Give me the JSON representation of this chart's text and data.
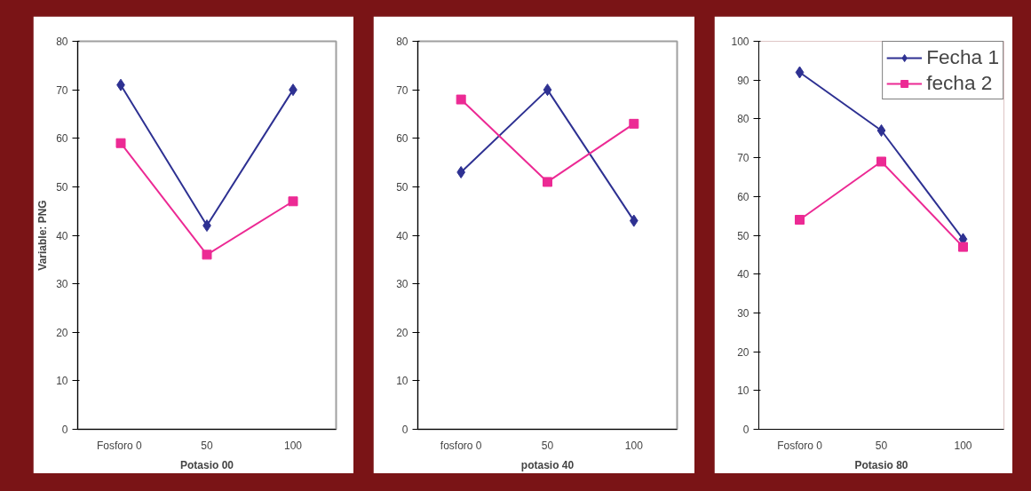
{
  "chart_data": [
    {
      "type": "line",
      "categories": [
        "Fosforo  0",
        "50",
        "100"
      ],
      "xlabel": "Potasio 00",
      "ylabel": "Variable: PNG",
      "ylim": [
        0,
        80
      ],
      "yticks": [
        0,
        10,
        20,
        30,
        40,
        50,
        60,
        70,
        80
      ],
      "grid": false,
      "legend": false,
      "series": [
        {
          "color": "#2e3192",
          "marker": "diamond",
          "values": [
            71,
            42,
            70
          ]
        },
        {
          "color": "#ec2a94",
          "marker": "square",
          "values": [
            59,
            36,
            47
          ]
        }
      ]
    },
    {
      "type": "line",
      "categories": [
        "fosforo 0",
        "50",
        "100"
      ],
      "xlabel": "potasio 40",
      "ylim": [
        0,
        80
      ],
      "yticks": [
        0,
        10,
        20,
        30,
        40,
        50,
        60,
        70,
        80
      ],
      "grid": false,
      "legend": false,
      "series": [
        {
          "color": "#2e3192",
          "marker": "diamond",
          "values": [
            53,
            70,
            43
          ]
        },
        {
          "color": "#ec2a94",
          "marker": "square",
          "values": [
            68,
            51,
            63
          ]
        }
      ]
    },
    {
      "type": "line",
      "categories": [
        "Fosforo 0",
        "50",
        "100"
      ],
      "xlabel": "Potasio 80",
      "ylim": [
        0,
        100
      ],
      "yticks": [
        0,
        10,
        20,
        30,
        40,
        50,
        60,
        70,
        80,
        90,
        100
      ],
      "grid": false,
      "legend": "top right",
      "series": [
        {
          "name": "Fecha 1",
          "color": "#2e3192",
          "marker": "diamond",
          "values": [
            92,
            77,
            49
          ]
        },
        {
          "name": "fecha 2",
          "color": "#ec2a94",
          "marker": "square",
          "values": [
            54,
            69,
            47
          ]
        }
      ]
    }
  ]
}
